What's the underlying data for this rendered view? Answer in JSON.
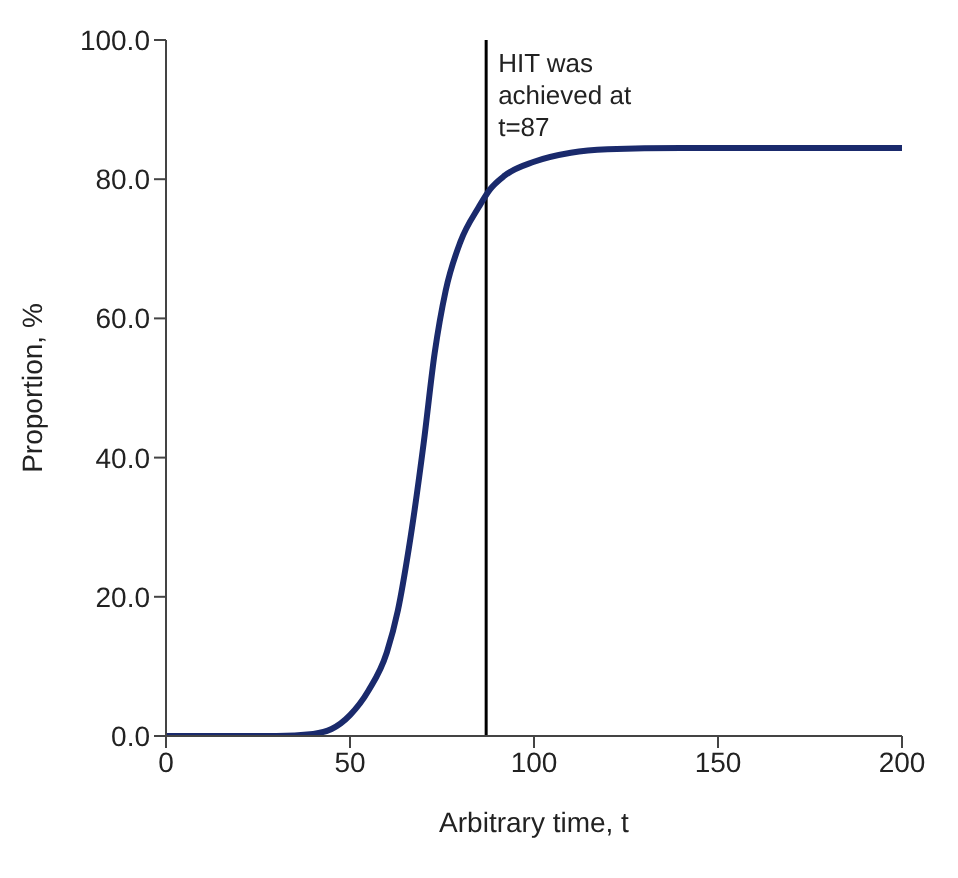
{
  "chart_data": {
    "type": "line",
    "xlabel": "Arbitrary time, t",
    "ylabel": "Proportion, %",
    "x": [
      0,
      30,
      40,
      45,
      50,
      55,
      60,
      63,
      66,
      70,
      73,
      76,
      80,
      85,
      88,
      92,
      100,
      110,
      120,
      140,
      200
    ],
    "series": [
      {
        "color": "#1a2a6c",
        "values": [
          0,
          0,
          0.3,
          1,
          3,
          6.5,
          12,
          18,
          27,
          42,
          55,
          64,
          71,
          76,
          78.5,
          80.5,
          82.5,
          83.8,
          84.3,
          84.5,
          84.5
        ]
      }
    ],
    "xlim": [
      0,
      200
    ],
    "xticks": [
      0,
      50,
      100,
      150,
      200
    ],
    "ylim": [
      0,
      100
    ],
    "yticks": [
      {
        "value": 0,
        "label": "0.0"
      },
      {
        "value": 20,
        "label": "20.0"
      },
      {
        "value": 40,
        "label": "40.0"
      },
      {
        "value": 60,
        "label": "60.0"
      },
      {
        "value": 80,
        "label": "80.0"
      },
      {
        "value": 100,
        "label": "100.0"
      }
    ],
    "ref_lines": [
      {
        "axis": "x",
        "value": 87,
        "label": "HIT was achieved at t=87",
        "color": "#000000"
      }
    ],
    "grid": false,
    "legend": false,
    "marker": "none",
    "line_style": "solid"
  }
}
